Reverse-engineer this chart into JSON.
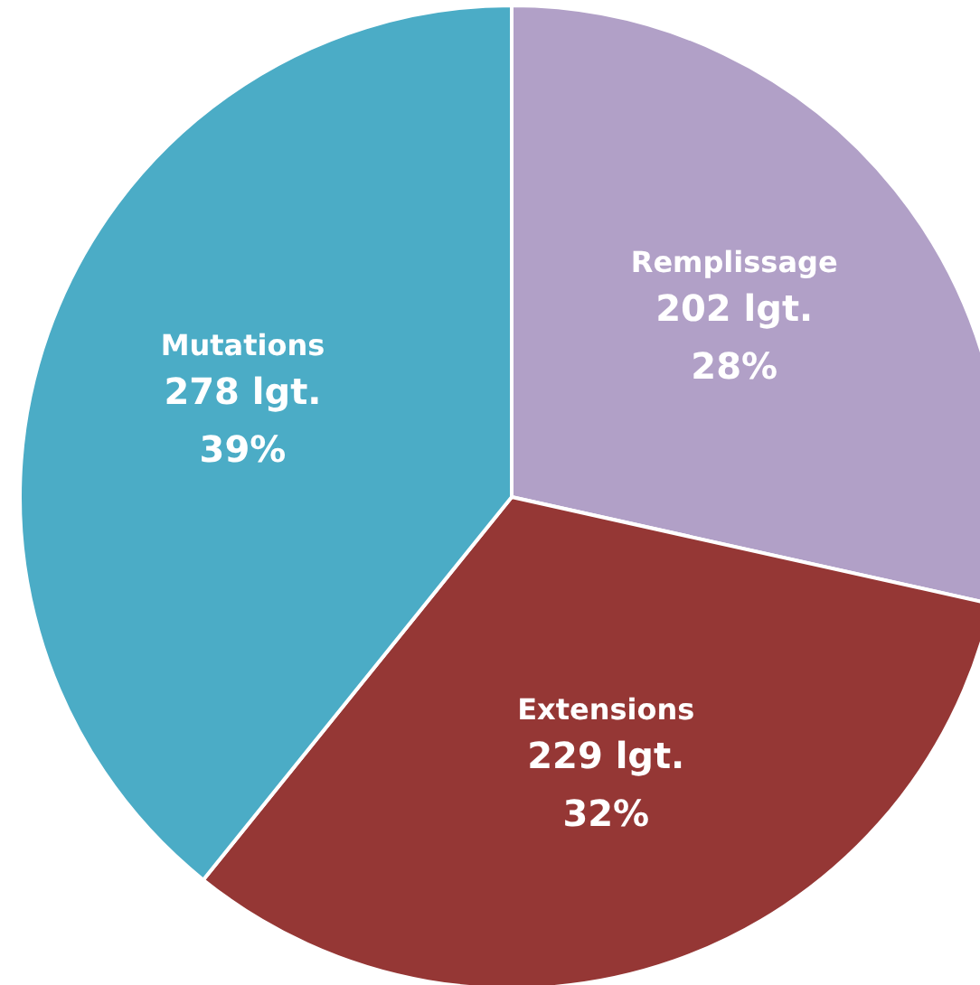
{
  "chart_data": {
    "type": "pie",
    "categories": [
      "Remplissage",
      "Extensions",
      "Mutations"
    ],
    "values": [
      202,
      229,
      278
    ],
    "value_labels": [
      "202 lgt.\n28%",
      "229 lgt.\n32%",
      "278 lgt.\n39%"
    ],
    "colors": [
      "#b1a0c7",
      "#953735",
      "#4bacc6"
    ],
    "legend": false
  }
}
